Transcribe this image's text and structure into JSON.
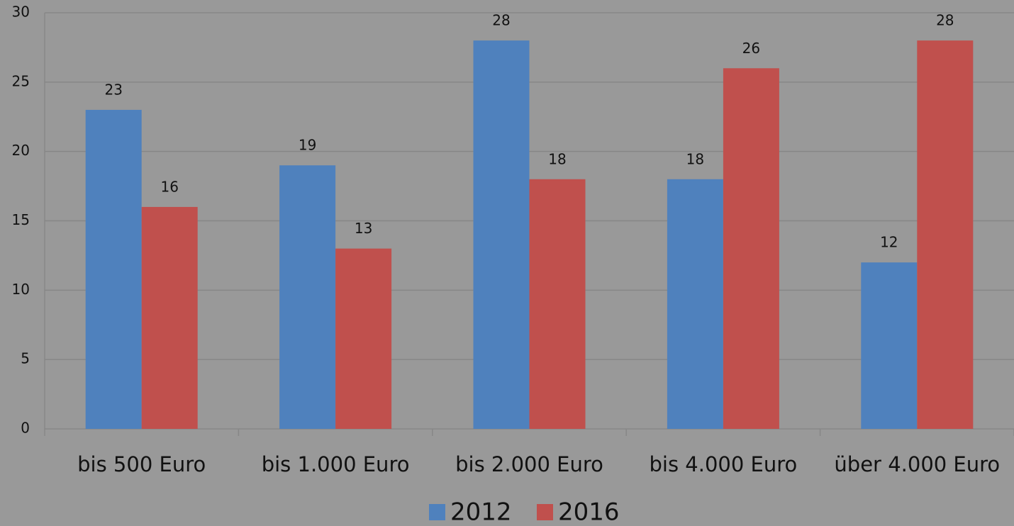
{
  "chart_data": {
    "type": "bar",
    "categories": [
      "bis 500 Euro",
      "bis 1.000 Euro",
      "bis 2.000 Euro",
      "bis 4.000 Euro",
      "über 4.000 Euro"
    ],
    "series": [
      {
        "name": "2012",
        "color": "#4f81bd",
        "values": [
          23,
          19,
          28,
          18,
          12
        ]
      },
      {
        "name": "2016",
        "color": "#c0504d",
        "values": [
          16,
          13,
          18,
          26,
          28
        ]
      }
    ],
    "ylim": [
      0,
      30
    ],
    "yticks": [
      0,
      5,
      10,
      15,
      20,
      25,
      30
    ],
    "grid": true,
    "legend": "bottom"
  }
}
